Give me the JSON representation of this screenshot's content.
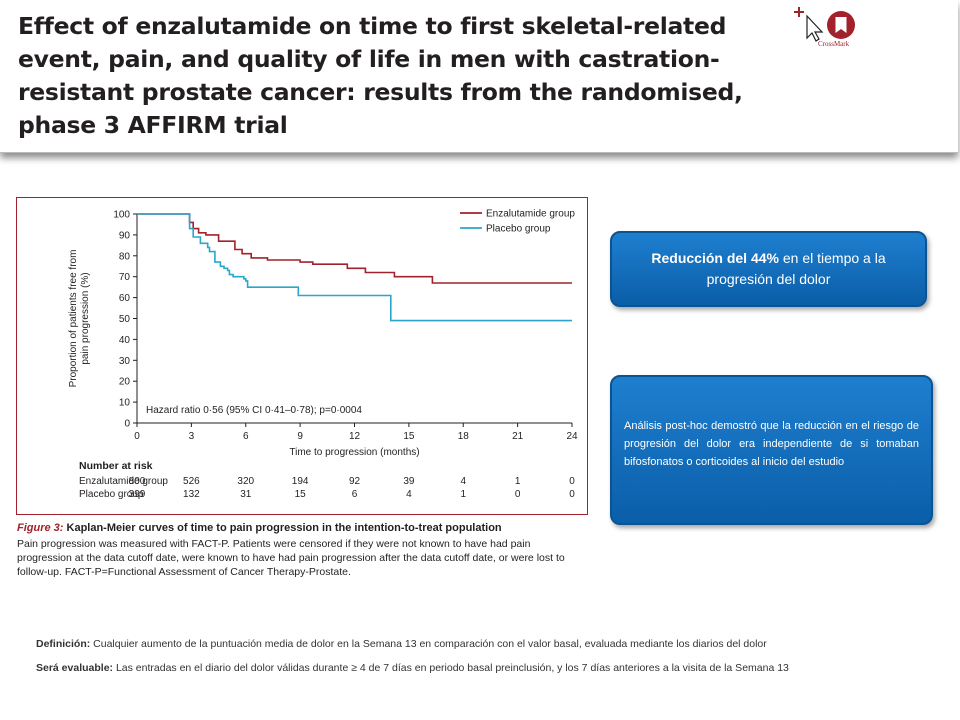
{
  "header": {
    "title": "Effect of enzalutamide on time to first skeletal-related event, pain, and quality of life in men with castration-resistant prostate cancer: results from the randomised, phase 3 AFFIRM trial",
    "crossmark_label": "CrossMark"
  },
  "chart_data": {
    "type": "line",
    "xlabel": "Time to progression (months)",
    "ylabel": "Proportion of patients free from pain progression (%)",
    "xlim": [
      0,
      24
    ],
    "ylim": [
      0,
      100
    ],
    "x_ticks": [
      0,
      3,
      6,
      9,
      12,
      15,
      18,
      21,
      24
    ],
    "y_ticks": [
      0,
      10,
      20,
      30,
      40,
      50,
      60,
      70,
      80,
      90,
      100
    ],
    "grid": false,
    "legend_position": "top-right",
    "annotation": "Hazard ratio 0·56 (95% CI 0·41–0·78); p=0·0004",
    "series": [
      {
        "name": "Enzalutamide group",
        "color": "#a1222c",
        "step": true,
        "points": [
          [
            0,
            100
          ],
          [
            2.8,
            100
          ],
          [
            2.9,
            96
          ],
          [
            3.1,
            93
          ],
          [
            3.4,
            91
          ],
          [
            3.8,
            90
          ],
          [
            4.5,
            87
          ],
          [
            5.4,
            83
          ],
          [
            5.8,
            81
          ],
          [
            6.3,
            79
          ],
          [
            7.2,
            78
          ],
          [
            9,
            77
          ],
          [
            9.7,
            76
          ],
          [
            11.6,
            74
          ],
          [
            12.6,
            72
          ],
          [
            14.2,
            70
          ],
          [
            16.3,
            67
          ],
          [
            24,
            67
          ]
        ]
      },
      {
        "name": "Placebo group",
        "color": "#2aa6cc",
        "step": true,
        "points": [
          [
            0,
            100
          ],
          [
            2.8,
            100
          ],
          [
            2.9,
            93
          ],
          [
            3.1,
            89
          ],
          [
            3.5,
            86
          ],
          [
            3.9,
            84
          ],
          [
            4,
            82
          ],
          [
            4.3,
            77
          ],
          [
            4.6,
            75
          ],
          [
            4.8,
            74
          ],
          [
            5,
            73
          ],
          [
            5.1,
            71
          ],
          [
            5.3,
            70
          ],
          [
            5.9,
            69
          ],
          [
            6,
            68
          ],
          [
            6.1,
            65
          ],
          [
            8.9,
            61
          ],
          [
            14,
            49
          ],
          [
            24,
            49
          ]
        ]
      }
    ],
    "risk_table": {
      "title": "Number at risk",
      "times": [
        0,
        3,
        6,
        9,
        12,
        15,
        18,
        21,
        24
      ],
      "rows": [
        {
          "label": "Enzalutamide group",
          "values": [
            "800",
            "526",
            "320",
            "194",
            "92",
            "39",
            "4",
            "1",
            "0"
          ]
        },
        {
          "label": "Placebo group",
          "values": [
            "399",
            "132",
            "31",
            "15",
            "6",
            "4",
            "1",
            "0",
            "0"
          ]
        }
      ]
    }
  },
  "figure": {
    "caption_label": "Figure 3:",
    "caption_title": " Kaplan-Meier curves of time to pain progression in the intention-to-treat population",
    "caption_body": "Pain progression was measured with FACT-P. Patients were censored if they were not known to have had pain progression at the data cutoff date, were known to have had pain progression after the data cutoff date, or were lost to follow-up. FACT-P=Functional Assessment of Cancer Therapy-Prostate."
  },
  "callouts": {
    "box1_strong": "Reducción del 44%",
    "box1_rest": " en el tiempo a la progresión del dolor",
    "box2": "Análisis post-hoc demostró que la reducción en el riesgo de progresión del dolor era independiente de si tomaban bifosfonatos o corticoides al inicio del estudio"
  },
  "footnotes": {
    "def_label": "Definición:",
    "def_text": " Cualquier aumento de la puntuación media de dolor en la Semana 13 en comparación con el valor basal, evaluada mediante los diarios del dolor",
    "eval_label": "Será evaluable:",
    "eval_text": " Las entradas en el diario del dolor válidas durante ≥ 4 de 7 días en periodo basal preinclusión, y los 7 días anteriores a la visita de la Semana 13"
  },
  "colors": {
    "enzalutamide": "#a1222c",
    "placebo": "#2aa6cc",
    "callout_blue": "#0b5ea8",
    "figure_border": "#a1222c"
  }
}
